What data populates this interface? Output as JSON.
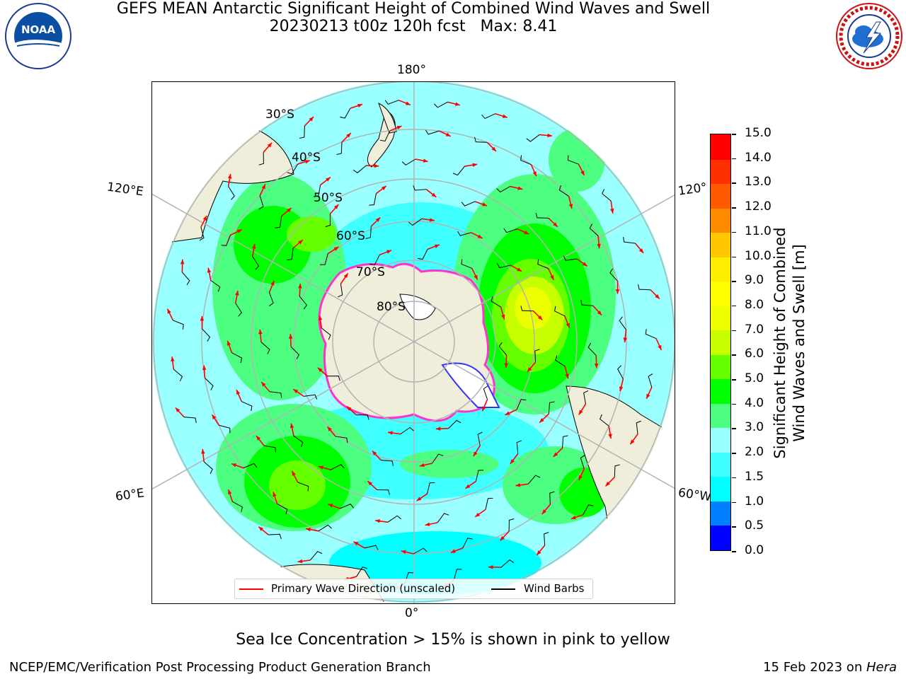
{
  "title": {
    "line1": "GEFS MEAN Antarctic Significant Height of Combined Wind Waves and Swell",
    "line2": "20230213 t00z 120h fcst   Max: 8.41"
  },
  "logos": {
    "left": {
      "name": "noaa-logo",
      "text": "NOAA",
      "ring_text": "NATIONAL OCEANIC AND ATMOSPHERIC ADMINISTRATION · U.S. DEPARTMENT OF COMMERCE"
    },
    "right": {
      "name": "nws-logo",
      "ring_text": "NATIONAL WEATHER SERVICE"
    }
  },
  "map": {
    "projection": "south-polar-stereographic",
    "longitude_labels": {
      "top": "180°",
      "bottom": "0°",
      "left_upper": "120°E",
      "left_lower": "60°E",
      "right_upper": "120°",
      "right_lower": "60°W"
    },
    "latitude_labels": [
      "30°S",
      "40°S",
      "50°S",
      "60°S",
      "70°S",
      "80°S"
    ],
    "colors": {
      "land": "#efeedb",
      "ice_outline": "#ff33cc",
      "wave_arrows": "#ff0000",
      "wind_barbs": "#000000",
      "graticule": "#b3b3b3"
    }
  },
  "colorbar": {
    "title_line1": "Significant Height of Combined",
    "title_line2": "Wind Waves and Swell [m]",
    "ticks": [
      "0.0",
      "0.5",
      "1.0",
      "1.5",
      "2.0",
      "3.0",
      "4.0",
      "5.0",
      "6.0",
      "7.0",
      "8.0",
      "9.0",
      "10.0",
      "11.0",
      "12.0",
      "13.0",
      "14.0",
      "15.0"
    ],
    "colors": [
      "#0000ff",
      "#0080ff",
      "#00ffff",
      "#40ffff",
      "#99ffff",
      "#4dff80",
      "#00ff00",
      "#66ff00",
      "#c8ff00",
      "#eeff00",
      "#ffff00",
      "#ffee00",
      "#ffc800",
      "#ff8c00",
      "#ff5a00",
      "#ff3000",
      "#ff0000"
    ]
  },
  "legend": {
    "items": [
      {
        "label": "Primary Wave Direction (unscaled)",
        "color": "#ff0000"
      },
      {
        "label": "Wind Barbs",
        "color": "#000000"
      }
    ]
  },
  "note": "Sea Ice Concentration > 15% is shown in pink to yellow",
  "footer": {
    "left": "NCEP/EMC/Verification Post Processing Product Generation Branch",
    "right_date": "15 Feb 2023 on ",
    "right_host": "Hera"
  }
}
